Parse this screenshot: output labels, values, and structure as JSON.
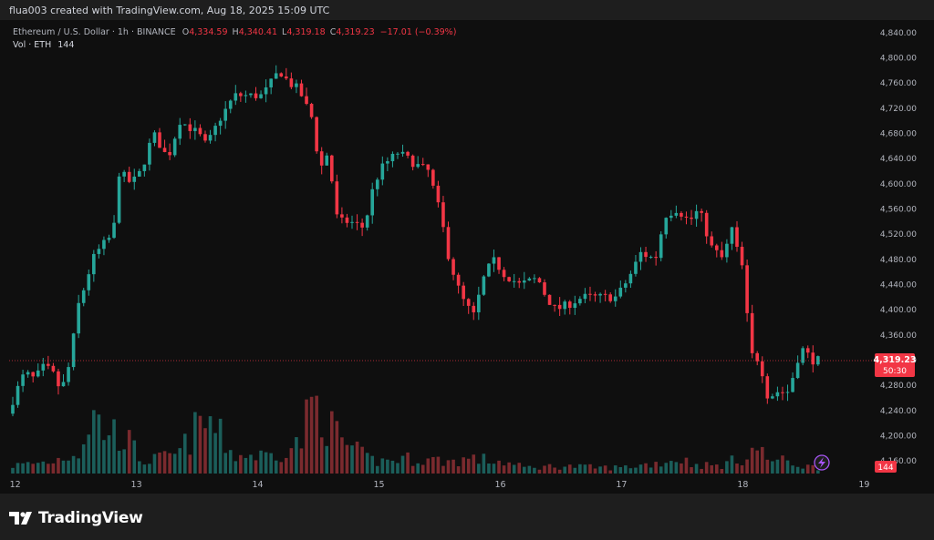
{
  "header": {
    "creator_line": "flua003 created with TradingView.com, Aug 18, 2025 15:09 UTC"
  },
  "legend": {
    "symbol": "Ethereum / U.S. Dollar · 1h · BINANCE",
    "o_label": "O",
    "o": "4,334.59",
    "h_label": "H",
    "h": "4,340.41",
    "l_label": "L",
    "l": "4,319.18",
    "c_label": "C",
    "c": "4,319.23",
    "change": "−17.01 (−0.39%)",
    "vol_label": "Vol · ETH",
    "vol_value": "144"
  },
  "price_badge": {
    "price": "4,319.23",
    "countdown": "50:30"
  },
  "volume_badge": "144",
  "footer": {
    "brand": "TradingView"
  },
  "colors": {
    "up": "#26a69a",
    "down": "#f23645",
    "up_vol": "#1b5e5a",
    "down_vol": "#7a2a2e",
    "background": "#0f0f0f"
  },
  "icons": {
    "lightning": "lightning-icon",
    "logo": "tradingview-logo-icon"
  },
  "chart_data": {
    "type": "candlestick",
    "interval": "1h",
    "title": "Ethereum / U.S. Dollar · 1h · BINANCE",
    "y_ticks": [
      4160,
      4200,
      4240,
      4280,
      4320,
      4360,
      4400,
      4440,
      4480,
      4520,
      4560,
      4600,
      4640,
      4680,
      4720,
      4760,
      4800,
      4840
    ],
    "y_tick_labels": [
      "4,160.00",
      "4,200.00",
      "4,240.00",
      "4,280.00",
      "4,320.00",
      "4,360.00",
      "4,400.00",
      "4,440.00",
      "4,480.00",
      "4,520.00",
      "4,560.00",
      "4,600.00",
      "4,640.00",
      "4,680.00",
      "4,720.00",
      "4,760.00",
      "4,800.00",
      "4,840.00"
    ],
    "ylim": [
      4140,
      4860
    ],
    "x_ticks": [
      {
        "x": 12,
        "label": "12"
      },
      {
        "x": 13,
        "label": "13"
      },
      {
        "x": 14,
        "label": "14"
      },
      {
        "x": 15,
        "label": "15"
      },
      {
        "x": 16,
        "label": "16"
      },
      {
        "x": 17,
        "label": "17"
      },
      {
        "x": 18,
        "label": "18"
      },
      {
        "x": 19,
        "label": "19"
      }
    ],
    "xlim": [
      11.95,
      19.08
    ],
    "last_price": 4319.23,
    "grid": false,
    "anchors": [
      [
        11.95,
        4220
      ],
      [
        12.05,
        4270
      ],
      [
        12.12,
        4300
      ],
      [
        12.2,
        4290
      ],
      [
        12.28,
        4310
      ],
      [
        12.35,
        4300
      ],
      [
        12.42,
        4270
      ],
      [
        12.5,
        4320
      ],
      [
        12.55,
        4400
      ],
      [
        12.62,
        4440
      ],
      [
        12.68,
        4480
      ],
      [
        12.75,
        4500
      ],
      [
        12.85,
        4520
      ],
      [
        12.9,
        4620
      ],
      [
        13.0,
        4600
      ],
      [
        13.08,
        4620
      ],
      [
        13.18,
        4680
      ],
      [
        13.3,
        4640
      ],
      [
        13.4,
        4700
      ],
      [
        13.55,
        4680
      ],
      [
        13.62,
        4660
      ],
      [
        13.72,
        4700
      ],
      [
        13.85,
        4740
      ],
      [
        14.0,
        4740
      ],
      [
        14.08,
        4740
      ],
      [
        14.15,
        4760
      ],
      [
        14.22,
        4780
      ],
      [
        14.3,
        4760
      ],
      [
        14.38,
        4750
      ],
      [
        14.45,
        4720
      ],
      [
        14.5,
        4700
      ],
      [
        14.55,
        4620
      ],
      [
        14.62,
        4650
      ],
      [
        14.7,
        4540
      ],
      [
        14.8,
        4540
      ],
      [
        14.92,
        4530
      ],
      [
        15.0,
        4600
      ],
      [
        15.08,
        4630
      ],
      [
        15.2,
        4650
      ],
      [
        15.35,
        4630
      ],
      [
        15.45,
        4620
      ],
      [
        15.55,
        4550
      ],
      [
        15.62,
        4480
      ],
      [
        15.72,
        4420
      ],
      [
        15.82,
        4390
      ],
      [
        15.92,
        4460
      ],
      [
        16.0,
        4480
      ],
      [
        16.05,
        4460
      ],
      [
        16.2,
        4440
      ],
      [
        16.35,
        4450
      ],
      [
        16.42,
        4420
      ],
      [
        16.5,
        4400
      ],
      [
        16.62,
        4410
      ],
      [
        16.72,
        4420
      ],
      [
        16.82,
        4420
      ],
      [
        16.95,
        4420
      ],
      [
        17.0,
        4420
      ],
      [
        17.1,
        4450
      ],
      [
        17.2,
        4490
      ],
      [
        17.32,
        4480
      ],
      [
        17.4,
        4550
      ],
      [
        17.5,
        4560
      ],
      [
        17.6,
        4540
      ],
      [
        17.68,
        4560
      ],
      [
        17.78,
        4500
      ],
      [
        17.88,
        4480
      ],
      [
        17.95,
        4530
      ],
      [
        18.0,
        4490
      ],
      [
        18.05,
        4460
      ],
      [
        18.1,
        4330
      ],
      [
        18.18,
        4320
      ],
      [
        18.25,
        4260
      ],
      [
        18.32,
        4270
      ],
      [
        18.42,
        4270
      ],
      [
        18.52,
        4340
      ],
      [
        18.62,
        4320
      ]
    ],
    "volume_anchors": [
      [
        11.95,
        5
      ],
      [
        12.3,
        8
      ],
      [
        12.55,
        16
      ],
      [
        12.62,
        40
      ],
      [
        12.72,
        30
      ],
      [
        12.9,
        25
      ],
      [
        13.05,
        8
      ],
      [
        13.2,
        10
      ],
      [
        13.35,
        13
      ],
      [
        13.5,
        30
      ],
      [
        13.6,
        35
      ],
      [
        13.8,
        12
      ],
      [
        14.1,
        12
      ],
      [
        14.35,
        20
      ],
      [
        14.45,
        48
      ],
      [
        14.55,
        40
      ],
      [
        14.6,
        30
      ],
      [
        14.75,
        18
      ],
      [
        14.9,
        10
      ],
      [
        15.0,
        8
      ],
      [
        15.2,
        10
      ],
      [
        15.45,
        9
      ],
      [
        15.6,
        8
      ],
      [
        15.75,
        10
      ],
      [
        16.0,
        8
      ],
      [
        16.2,
        4
      ],
      [
        16.5,
        5
      ],
      [
        16.8,
        4
      ],
      [
        17.0,
        4
      ],
      [
        17.3,
        7
      ],
      [
        17.48,
        10
      ],
      [
        17.6,
        6
      ],
      [
        17.8,
        5
      ],
      [
        18.05,
        12
      ],
      [
        18.1,
        18
      ],
      [
        18.2,
        10
      ],
      [
        18.35,
        8
      ],
      [
        18.5,
        5
      ],
      [
        18.62,
        4
      ]
    ],
    "volume_max_axis": 60
  }
}
